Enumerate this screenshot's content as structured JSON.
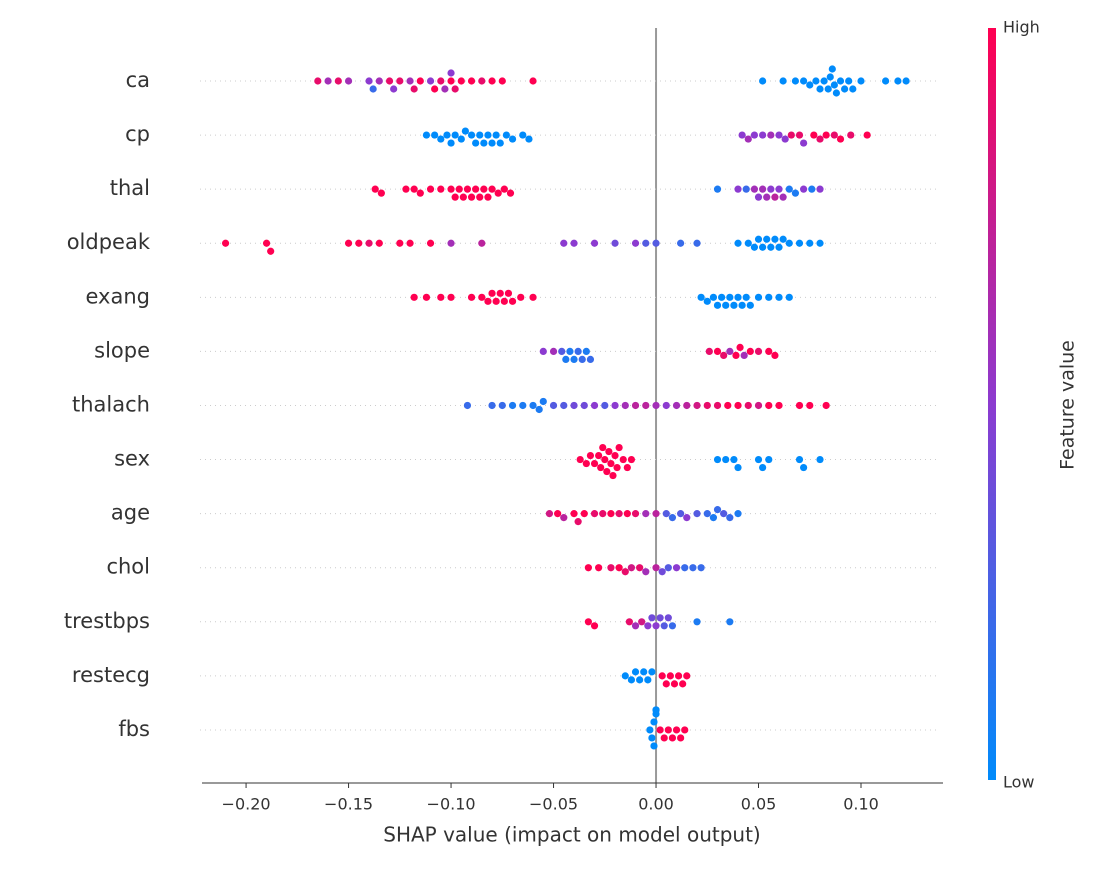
{
  "chart_data": {
    "type": "beeswarm",
    "xlabel": "SHAP value (impact on model output)",
    "colorbar": {
      "label": "Feature value",
      "high": "High",
      "low": "Low"
    },
    "colormap": [
      "#008bfb",
      "#8c3bd0",
      "#ff0051"
    ],
    "xlim": [
      -0.2215,
      0.14
    ],
    "xticks": [
      {
        "value": -0.2,
        "label": "−0.20"
      },
      {
        "value": -0.15,
        "label": "−0.15"
      },
      {
        "value": -0.1,
        "label": "−0.10"
      },
      {
        "value": -0.05,
        "label": "−0.05"
      },
      {
        "value": 0,
        "label": "0.00"
      },
      {
        "value": 0.05,
        "label": "0.05"
      },
      {
        "value": 0.1,
        "label": "0.10"
      }
    ],
    "categories": [
      "ca",
      "cp",
      "thal",
      "oldpeak",
      "exang",
      "slope",
      "thalach",
      "sex",
      "age",
      "chol",
      "trestbps",
      "restecg",
      "fbs"
    ],
    "points": [
      [
        [
          -0.165,
          0.9
        ],
        [
          -0.16,
          0.6
        ],
        [
          -0.155,
          0.9
        ],
        [
          -0.15,
          0.6
        ],
        [
          -0.14,
          0.5
        ],
        [
          -0.138,
          0.2
        ],
        [
          -0.135,
          0.6
        ],
        [
          -0.13,
          0.9
        ],
        [
          -0.128,
          0.5
        ],
        [
          -0.125,
          0.9
        ],
        [
          -0.12,
          0.6
        ],
        [
          -0.118,
          0.9
        ],
        [
          -0.115,
          1
        ],
        [
          -0.11,
          0.5
        ],
        [
          -0.108,
          1
        ],
        [
          -0.105,
          0.9
        ],
        [
          -0.103,
          0.6
        ],
        [
          -0.1,
          1
        ],
        [
          -0.1,
          0.5
        ],
        [
          -0.098,
          0.9
        ],
        [
          -0.095,
          1
        ],
        [
          -0.09,
          1
        ],
        [
          -0.085,
          0.9
        ],
        [
          -0.08,
          1
        ],
        [
          -0.075,
          1
        ],
        [
          -0.06,
          1
        ],
        [
          0.052,
          0
        ],
        [
          0.062,
          0
        ],
        [
          0.068,
          0
        ],
        [
          0.072,
          0
        ],
        [
          0.075,
          0
        ],
        [
          0.078,
          0
        ],
        [
          0.08,
          0
        ],
        [
          0.082,
          0
        ],
        [
          0.084,
          0
        ],
        [
          0.085,
          0
        ],
        [
          0.086,
          0
        ],
        [
          0.087,
          0
        ],
        [
          0.088,
          0
        ],
        [
          0.09,
          0
        ],
        [
          0.092,
          0
        ],
        [
          0.094,
          0
        ],
        [
          0.096,
          0
        ],
        [
          0.1,
          0
        ],
        [
          0.112,
          0
        ],
        [
          0.118,
          0
        ],
        [
          0.122,
          0
        ]
      ],
      [
        [
          -0.112,
          0
        ],
        [
          -0.108,
          0
        ],
        [
          -0.105,
          0
        ],
        [
          -0.102,
          0
        ],
        [
          -0.1,
          0
        ],
        [
          -0.098,
          0
        ],
        [
          -0.095,
          0
        ],
        [
          -0.093,
          0
        ],
        [
          -0.09,
          0
        ],
        [
          -0.088,
          0
        ],
        [
          -0.086,
          0
        ],
        [
          -0.084,
          0
        ],
        [
          -0.082,
          0
        ],
        [
          -0.08,
          0
        ],
        [
          -0.078,
          0
        ],
        [
          -0.076,
          0
        ],
        [
          -0.073,
          0
        ],
        [
          -0.07,
          0
        ],
        [
          -0.065,
          0
        ],
        [
          -0.062,
          0
        ],
        [
          0.042,
          0.5
        ],
        [
          0.045,
          0.6
        ],
        [
          0.048,
          0.5
        ],
        [
          0.052,
          0.5
        ],
        [
          0.056,
          0.6
        ],
        [
          0.06,
          0.5
        ],
        [
          0.063,
          0.5
        ],
        [
          0.066,
          0.9
        ],
        [
          0.07,
          0.9
        ],
        [
          0.072,
          0.5
        ],
        [
          0.077,
          1
        ],
        [
          0.08,
          0.9
        ],
        [
          0.083,
          1
        ],
        [
          0.087,
          0.9
        ],
        [
          0.09,
          1
        ],
        [
          0.095,
          0.9
        ],
        [
          0.103,
          1
        ]
      ],
      [
        [
          -0.137,
          1
        ],
        [
          -0.134,
          1
        ],
        [
          -0.122,
          1
        ],
        [
          -0.118,
          1
        ],
        [
          -0.115,
          1
        ],
        [
          -0.11,
          1
        ],
        [
          -0.105,
          1
        ],
        [
          -0.1,
          1
        ],
        [
          -0.098,
          1
        ],
        [
          -0.096,
          1
        ],
        [
          -0.094,
          1
        ],
        [
          -0.092,
          1
        ],
        [
          -0.09,
          1
        ],
        [
          -0.088,
          1
        ],
        [
          -0.086,
          1
        ],
        [
          -0.084,
          1
        ],
        [
          -0.082,
          1
        ],
        [
          -0.08,
          1
        ],
        [
          -0.077,
          1
        ],
        [
          -0.074,
          1
        ],
        [
          -0.071,
          1
        ],
        [
          0.03,
          0.1
        ],
        [
          0.04,
          0.5
        ],
        [
          0.044,
          0.2
        ],
        [
          0.048,
          0.6
        ],
        [
          0.05,
          0.5
        ],
        [
          0.052,
          0.6
        ],
        [
          0.054,
          0.6
        ],
        [
          0.056,
          0.5
        ],
        [
          0.058,
          0.7
        ],
        [
          0.06,
          0.5
        ],
        [
          0.062,
          0.6
        ],
        [
          0.065,
          0.1
        ],
        [
          0.068,
          0.1
        ],
        [
          0.072,
          0.5
        ],
        [
          0.076,
          0.1
        ],
        [
          0.08,
          0.5
        ]
      ],
      [
        [
          -0.21,
          1
        ],
        [
          -0.19,
          1
        ],
        [
          -0.188,
          1
        ],
        [
          -0.15,
          1
        ],
        [
          -0.145,
          1
        ],
        [
          -0.14,
          0.9
        ],
        [
          -0.135,
          1
        ],
        [
          -0.125,
          1
        ],
        [
          -0.12,
          1
        ],
        [
          -0.11,
          1
        ],
        [
          -0.1,
          0.6
        ],
        [
          -0.085,
          0.7
        ],
        [
          -0.045,
          0.5
        ],
        [
          -0.04,
          0.5
        ],
        [
          -0.03,
          0.5
        ],
        [
          -0.02,
          0.4
        ],
        [
          -0.01,
          0.5
        ],
        [
          -0.005,
          0.3
        ],
        [
          0.0,
          0.3
        ],
        [
          0.012,
          0.2
        ],
        [
          0.02,
          0.2
        ],
        [
          0.04,
          0
        ],
        [
          0.045,
          0
        ],
        [
          0.048,
          0
        ],
        [
          0.05,
          0
        ],
        [
          0.052,
          0
        ],
        [
          0.054,
          0
        ],
        [
          0.056,
          0
        ],
        [
          0.058,
          0
        ],
        [
          0.06,
          0
        ],
        [
          0.062,
          0
        ],
        [
          0.065,
          0
        ],
        [
          0.07,
          0
        ],
        [
          0.075,
          0
        ],
        [
          0.08,
          0
        ]
      ],
      [
        [
          -0.118,
          1
        ],
        [
          -0.112,
          1
        ],
        [
          -0.105,
          1
        ],
        [
          -0.1,
          1
        ],
        [
          -0.09,
          1
        ],
        [
          -0.085,
          1
        ],
        [
          -0.082,
          1
        ],
        [
          -0.08,
          1
        ],
        [
          -0.078,
          1
        ],
        [
          -0.076,
          1
        ],
        [
          -0.074,
          1
        ],
        [
          -0.072,
          1
        ],
        [
          -0.07,
          1
        ],
        [
          -0.066,
          1
        ],
        [
          -0.06,
          1
        ],
        [
          0.022,
          0
        ],
        [
          0.025,
          0
        ],
        [
          0.028,
          0
        ],
        [
          0.03,
          0
        ],
        [
          0.032,
          0
        ],
        [
          0.034,
          0
        ],
        [
          0.036,
          0
        ],
        [
          0.038,
          0
        ],
        [
          0.04,
          0
        ],
        [
          0.042,
          0
        ],
        [
          0.044,
          0
        ],
        [
          0.046,
          0
        ],
        [
          0.05,
          0
        ],
        [
          0.055,
          0
        ],
        [
          0.06,
          0
        ],
        [
          0.065,
          0
        ]
      ],
      [
        [
          -0.055,
          0.5
        ],
        [
          -0.05,
          0.6
        ],
        [
          -0.046,
          0.3
        ],
        [
          -0.044,
          0.1
        ],
        [
          -0.042,
          0.1
        ],
        [
          -0.04,
          0.1
        ],
        [
          -0.038,
          0.2
        ],
        [
          -0.036,
          0.2
        ],
        [
          -0.034,
          0.1
        ],
        [
          -0.032,
          0.2
        ],
        [
          0.026,
          0.9
        ],
        [
          0.03,
          1
        ],
        [
          0.033,
          0.9
        ],
        [
          0.036,
          0.6
        ],
        [
          0.039,
          1
        ],
        [
          0.041,
          1
        ],
        [
          0.043,
          0.6
        ],
        [
          0.046,
          1
        ],
        [
          0.05,
          0.9
        ],
        [
          0.055,
          1
        ],
        [
          0.058,
          1
        ]
      ],
      [
        [
          -0.092,
          0.2
        ],
        [
          -0.08,
          0.2
        ],
        [
          -0.075,
          0.2
        ],
        [
          -0.07,
          0.1
        ],
        [
          -0.065,
          0.1
        ],
        [
          -0.06,
          0.1
        ],
        [
          -0.057,
          0.1
        ],
        [
          -0.055,
          0.1
        ],
        [
          -0.05,
          0.3
        ],
        [
          -0.045,
          0.3
        ],
        [
          -0.04,
          0.4
        ],
        [
          -0.035,
          0.4
        ],
        [
          -0.03,
          0.5
        ],
        [
          -0.025,
          0.3
        ],
        [
          -0.02,
          0.5
        ],
        [
          -0.015,
          0.6
        ],
        [
          -0.01,
          0.7
        ],
        [
          -0.005,
          0.7
        ],
        [
          0.0,
          0.6
        ],
        [
          0.005,
          0.5
        ],
        [
          0.01,
          0.6
        ],
        [
          0.015,
          0.7
        ],
        [
          0.02,
          0.8
        ],
        [
          0.025,
          0.9
        ],
        [
          0.03,
          0.9
        ],
        [
          0.035,
          1
        ],
        [
          0.04,
          1
        ],
        [
          0.045,
          0.9
        ],
        [
          0.05,
          0.8
        ],
        [
          0.055,
          1
        ],
        [
          0.06,
          1
        ],
        [
          0.07,
          1
        ],
        [
          0.075,
          1
        ],
        [
          0.083,
          1
        ]
      ],
      [
        [
          -0.037,
          1
        ],
        [
          -0.034,
          1
        ],
        [
          -0.032,
          1
        ],
        [
          -0.03,
          1
        ],
        [
          -0.028,
          1
        ],
        [
          -0.027,
          1
        ],
        [
          -0.026,
          1
        ],
        [
          -0.025,
          1
        ],
        [
          -0.024,
          1
        ],
        [
          -0.023,
          1
        ],
        [
          -0.022,
          1
        ],
        [
          -0.021,
          1
        ],
        [
          -0.02,
          1
        ],
        [
          -0.019,
          1
        ],
        [
          -0.018,
          1
        ],
        [
          -0.016,
          1
        ],
        [
          -0.014,
          1
        ],
        [
          -0.012,
          1
        ],
        [
          0.03,
          0
        ],
        [
          0.034,
          0
        ],
        [
          0.038,
          0
        ],
        [
          0.04,
          0
        ],
        [
          0.05,
          0
        ],
        [
          0.052,
          0
        ],
        [
          0.055,
          0
        ],
        [
          0.07,
          0
        ],
        [
          0.072,
          0
        ],
        [
          0.08,
          0
        ]
      ],
      [
        [
          -0.052,
          0.8
        ],
        [
          -0.048,
          1
        ],
        [
          -0.045,
          0.7
        ],
        [
          -0.04,
          1
        ],
        [
          -0.038,
          0.9
        ],
        [
          -0.035,
          1
        ],
        [
          -0.03,
          0.9
        ],
        [
          -0.026,
          0.9
        ],
        [
          -0.022,
          1
        ],
        [
          -0.018,
          0.9
        ],
        [
          -0.014,
          1
        ],
        [
          -0.01,
          0.9
        ],
        [
          -0.005,
          0.6
        ],
        [
          0.0,
          0.7
        ],
        [
          0.005,
          0.3
        ],
        [
          0.008,
          0.2
        ],
        [
          0.012,
          0.3
        ],
        [
          0.015,
          0.5
        ],
        [
          0.02,
          0.3
        ],
        [
          0.025,
          0.2
        ],
        [
          0.028,
          0.1
        ],
        [
          0.03,
          0.2
        ],
        [
          0.033,
          0.3
        ],
        [
          0.036,
          0.2
        ],
        [
          0.04,
          0.1
        ]
      ],
      [
        [
          -0.033,
          1
        ],
        [
          -0.028,
          1
        ],
        [
          -0.022,
          0.9
        ],
        [
          -0.018,
          1
        ],
        [
          -0.015,
          0.9
        ],
        [
          -0.012,
          0.8
        ],
        [
          -0.008,
          0.9
        ],
        [
          -0.005,
          0.6
        ],
        [
          0.0,
          0.7
        ],
        [
          0.003,
          0.4
        ],
        [
          0.006,
          0.3
        ],
        [
          0.01,
          0.5
        ],
        [
          0.014,
          0.2
        ],
        [
          0.018,
          0.2
        ],
        [
          0.022,
          0.2
        ]
      ],
      [
        [
          -0.033,
          1
        ],
        [
          -0.03,
          1
        ],
        [
          -0.013,
          0.9
        ],
        [
          -0.01,
          0.6
        ],
        [
          -0.007,
          0.8
        ],
        [
          -0.004,
          0.5
        ],
        [
          -0.002,
          0.4
        ],
        [
          0.0,
          0.5
        ],
        [
          0.002,
          0.4
        ],
        [
          0.004,
          0.3
        ],
        [
          0.006,
          0.4
        ],
        [
          0.008,
          0.2
        ],
        [
          0.02,
          0.1
        ],
        [
          0.036,
          0.1
        ]
      ],
      [
        [
          -0.015,
          0
        ],
        [
          -0.012,
          0
        ],
        [
          -0.01,
          0
        ],
        [
          -0.008,
          0
        ],
        [
          -0.006,
          0
        ],
        [
          -0.004,
          0
        ],
        [
          -0.002,
          0
        ],
        [
          0.003,
          1
        ],
        [
          0.005,
          1
        ],
        [
          0.007,
          1
        ],
        [
          0.009,
          1
        ],
        [
          0.011,
          1
        ],
        [
          0.013,
          1
        ],
        [
          0.015,
          1
        ]
      ],
      [
        [
          -0.003,
          0
        ],
        [
          -0.002,
          0
        ],
        [
          -0.001,
          0
        ],
        [
          -0.001,
          0
        ],
        [
          0.0,
          0
        ],
        [
          0.0,
          0
        ],
        [
          0.0,
          0
        ],
        [
          0.002,
          1
        ],
        [
          0.004,
          1
        ],
        [
          0.006,
          1
        ],
        [
          0.008,
          1
        ],
        [
          0.01,
          1
        ],
        [
          0.012,
          1
        ],
        [
          0.014,
          1
        ]
      ]
    ]
  }
}
